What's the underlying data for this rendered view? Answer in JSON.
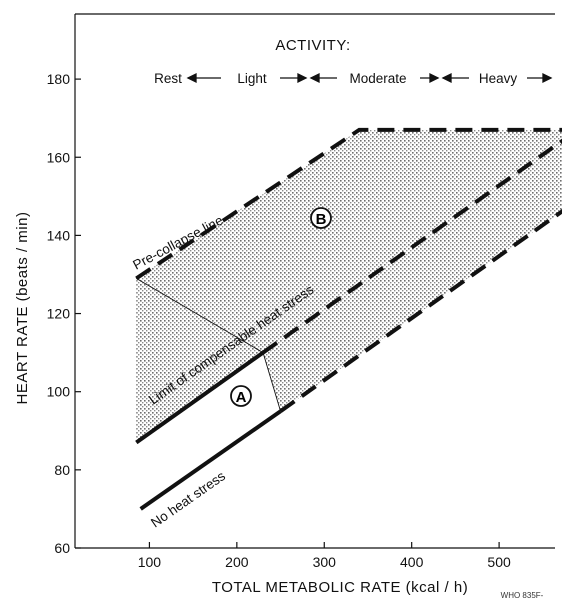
{
  "chart_data": {
    "type": "line",
    "xlabel": "TOTAL METABOLIC RATE (kcal / h)",
    "ylabel": "HEART RATE (beats / min)",
    "xlim": [
      0,
      600
    ],
    "ylim": [
      60,
      190
    ],
    "xticks": [
      100,
      200,
      300,
      400,
      500
    ],
    "yticks": [
      60,
      80,
      100,
      120,
      140,
      160,
      180
    ],
    "grid": false,
    "activity": {
      "label": "ACTIVITY:",
      "levels": [
        "Rest",
        "Light",
        "Moderate",
        "Heavy"
      ]
    },
    "series": [
      {
        "name": "Pre-collapse line",
        "style": "dashed",
        "x": [
          85,
          340,
          590
        ],
        "y": [
          129,
          167,
          167
        ]
      },
      {
        "name": "Limit of compensable heat stress",
        "style": "solid-then-dashed",
        "x": [
          85,
          230,
          590
        ],
        "y": [
          87,
          110,
          167
        ]
      },
      {
        "name": "No heat stress",
        "style": "solid-then-dashed",
        "x": [
          90,
          250,
          590
        ],
        "y": [
          70,
          95,
          149
        ]
      }
    ],
    "regions": [
      {
        "label": "A",
        "x": 220,
        "y": 98
      },
      {
        "label": "B",
        "x": 320,
        "y": 143
      }
    ],
    "credit": "WHO 835F-"
  }
}
